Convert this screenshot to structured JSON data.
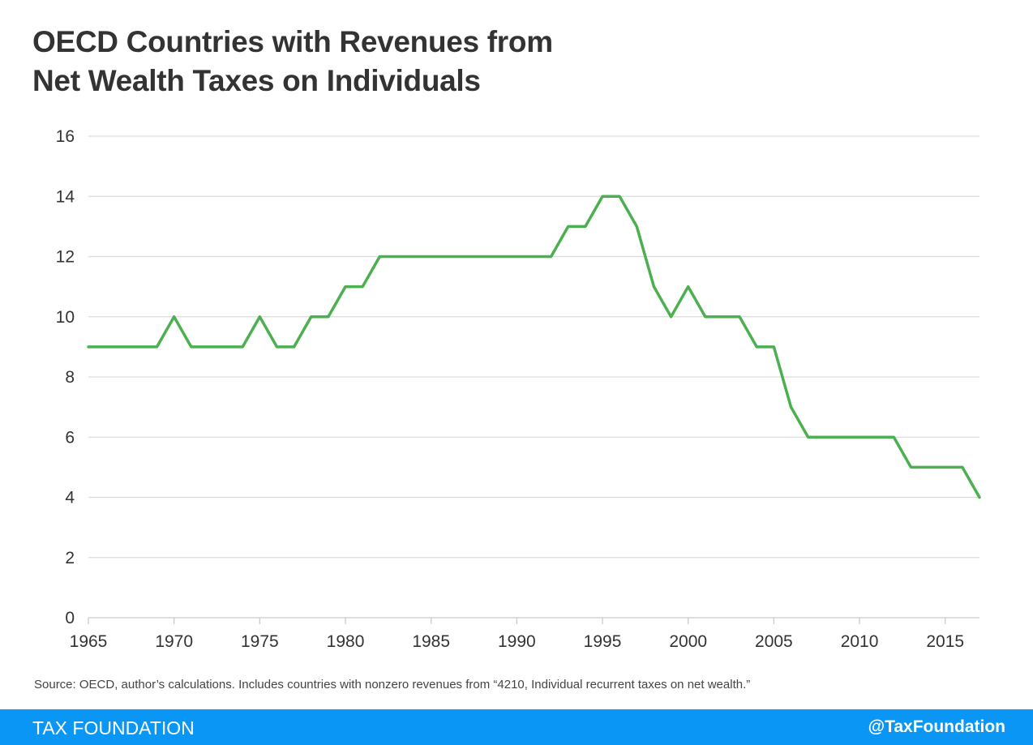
{
  "title_line1": "OECD Countries with Revenues from",
  "title_line2": "Net Wealth Taxes on Individuals",
  "source": "Source: OECD, author’s calculations. Includes countries with nonzero revenues from “4210, Individual recurrent taxes on net wealth.”",
  "footer": {
    "brand": "TAX FOUNDATION",
    "handle": "@TaxFoundation",
    "color": "#0a96f5"
  },
  "chart_data": {
    "type": "line",
    "title": "OECD Countries with Revenues from Net Wealth Taxes on Individuals",
    "xlabel": "",
    "ylabel": "",
    "xlim": [
      1965,
      2017
    ],
    "ylim": [
      0,
      16
    ],
    "grid": true,
    "line_color": "#4caf50",
    "x_ticks": [
      1965,
      1970,
      1975,
      1980,
      1985,
      1990,
      1995,
      2000,
      2005,
      2010,
      2015
    ],
    "y_ticks": [
      0,
      2,
      4,
      6,
      8,
      10,
      12,
      14,
      16
    ],
    "x": [
      1965,
      1966,
      1967,
      1968,
      1969,
      1970,
      1971,
      1972,
      1973,
      1974,
      1975,
      1976,
      1977,
      1978,
      1979,
      1980,
      1981,
      1982,
      1983,
      1984,
      1985,
      1986,
      1987,
      1988,
      1989,
      1990,
      1991,
      1992,
      1993,
      1994,
      1995,
      1996,
      1997,
      1998,
      1999,
      2000,
      2001,
      2002,
      2003,
      2004,
      2005,
      2006,
      2007,
      2008,
      2009,
      2010,
      2011,
      2012,
      2013,
      2014,
      2015,
      2016,
      2017
    ],
    "y": [
      9,
      9,
      9,
      9,
      9,
      10,
      9,
      9,
      9,
      9,
      10,
      9,
      9,
      10,
      10,
      11,
      11,
      12,
      12,
      12,
      12,
      12,
      12,
      12,
      12,
      12,
      12,
      12,
      13,
      13,
      14,
      14,
      13,
      11,
      10,
      11,
      10,
      10,
      10,
      9,
      9,
      7,
      6,
      6,
      6,
      6,
      6,
      6,
      5,
      5,
      5,
      5,
      4
    ]
  }
}
